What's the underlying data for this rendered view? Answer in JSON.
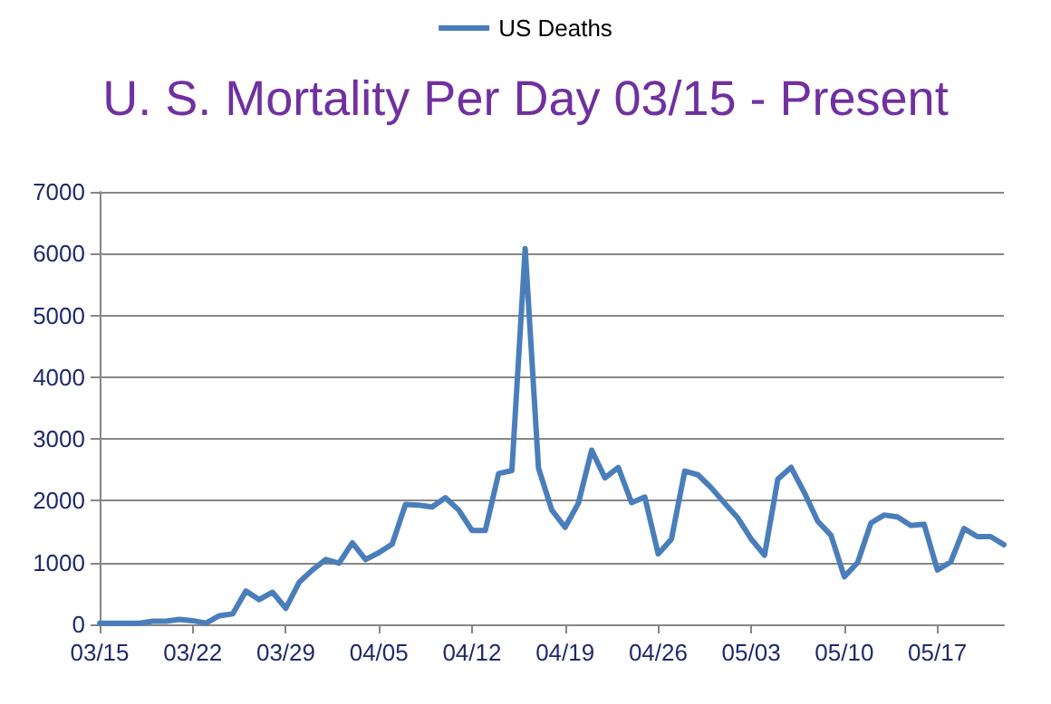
{
  "chart_data": {
    "type": "line",
    "title": "U. S. Mortality Per Day 03/15 - Present",
    "categories": [
      "03/15",
      null,
      null,
      null,
      null,
      null,
      null,
      "03/22",
      null,
      null,
      null,
      null,
      null,
      null,
      "03/29",
      null,
      null,
      null,
      null,
      null,
      null,
      "04/05",
      null,
      null,
      null,
      null,
      null,
      null,
      "04/12",
      null,
      null,
      null,
      null,
      null,
      null,
      "04/19",
      null,
      null,
      null,
      null,
      null,
      null,
      "04/26",
      null,
      null,
      null,
      null,
      null,
      null,
      "05/03",
      null,
      null,
      null,
      null,
      null,
      null,
      "05/10",
      null,
      null,
      null,
      null,
      null,
      null,
      "05/17",
      null,
      null,
      null,
      null,
      null
    ],
    "series": [
      {
        "name": "US Deaths",
        "color": "#4a7ebb",
        "values": [
          20,
          20,
          20,
          20,
          50,
          50,
          80,
          60,
          20,
          140,
          170,
          540,
          400,
          520,
          260,
          680,
          880,
          1050,
          990,
          1320,
          1050,
          1160,
          1300,
          1940,
          1930,
          1900,
          2050,
          1850,
          1520,
          1520,
          2440,
          2490,
          6080,
          2530,
          1850,
          1570,
          1960,
          2820,
          2370,
          2540,
          1970,
          2060,
          1140,
          1380,
          2480,
          2420,
          2210,
          1960,
          1720,
          1380,
          1120,
          2350,
          2540,
          2130,
          1670,
          1440,
          770,
          1000,
          1640,
          1770,
          1740,
          1600,
          1620,
          880,
          1010,
          1550,
          1420,
          1420,
          1290
        ]
      }
    ],
    "ylim": [
      0,
      7000
    ],
    "yticks": [
      0,
      1000,
      2000,
      3000,
      4000,
      5000,
      6000,
      7000
    ],
    "grid": "y",
    "legend": "top",
    "marker": "none",
    "line_style": "solid"
  }
}
